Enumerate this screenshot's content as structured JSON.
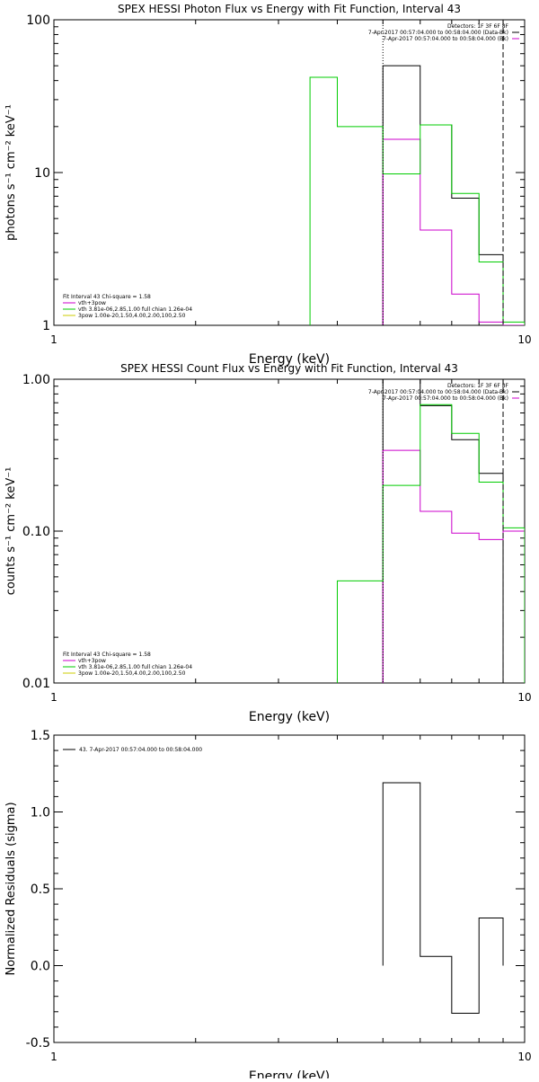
{
  "colors": {
    "observed": "#000000",
    "background": "#cc00cc",
    "model": "#00cc00",
    "pow": "#cccc00",
    "axis": "#000000"
  },
  "chart_data": [
    {
      "type": "step",
      "title": "SPEX HESSI Photon Flux vs Energy with Fit Function, Interval 43",
      "xlabel": "Energy (keV)",
      "ylabel": "photons s⁻¹ cm⁻² keV⁻¹",
      "xscale": "log",
      "yscale": "log",
      "xlim": [
        1,
        10
      ],
      "ylim": [
        1,
        100
      ],
      "xticks": [
        {
          "v": 1,
          "label": "1"
        },
        {
          "v": 10,
          "label": "10"
        }
      ],
      "yticks": [
        {
          "v": 1,
          "label": "1"
        },
        {
          "v": 10,
          "label": "10"
        },
        {
          "v": 100,
          "label": "100"
        }
      ],
      "vlines": [
        {
          "x": 5,
          "style": "dotted"
        },
        {
          "x": 9,
          "style": "dashed"
        }
      ],
      "legend_top": {
        "lines": [
          "Detectors: 1F 3F 6F 8F",
          "7-Apr-2017 00:57:04.000 to 00:58:04.000 (Data-Bk)",
          "7-Apr-2017 00:57:04.000 to 00:58:04.000 (Bk)"
        ],
        "colors": [
          "#000000",
          "#000000",
          "#cc00cc"
        ]
      },
      "legend_bottom": {
        "lines": [
          "Fit Interval 43   Chi-square = 1.58",
          "vth+3pow",
          "vth 3.81e-06,2.85,1.00  full chian 1.26e-04",
          "3pow 1.00e-20,1.50,4.00,2.00,100,2.50"
        ],
        "colors": [
          "#000000",
          "#cc00cc",
          "#00cc00",
          "#cccc00"
        ]
      },
      "series": [
        {
          "name": "Data-Bk",
          "color": "#000000",
          "edges": [
            5,
            6,
            7,
            8,
            9
          ],
          "values": [
            50,
            20.5,
            6.8,
            2.9
          ]
        },
        {
          "name": "Bk",
          "color": "#cc00cc",
          "edges": [
            5,
            6,
            7,
            8,
            9,
            10
          ],
          "values": [
            16.5,
            4.2,
            1.6,
            1.05,
            1.0
          ]
        },
        {
          "name": "vth",
          "color": "#00cc00",
          "edges": [
            3.5,
            4,
            5,
            6,
            7,
            8,
            9,
            10
          ],
          "values": [
            42,
            20,
            9.8,
            20.5,
            7.3,
            2.6,
            1.05
          ]
        }
      ]
    },
    {
      "type": "step",
      "title": "SPEX HESSI Count Flux vs Energy with Fit Function, Interval 43",
      "xlabel": "Energy (keV)",
      "ylabel": "counts s⁻¹ cm⁻² keV⁻¹",
      "xscale": "log",
      "yscale": "log",
      "xlim": [
        1,
        10
      ],
      "ylim": [
        0.01,
        1
      ],
      "xticks": [
        {
          "v": 1,
          "label": "1"
        },
        {
          "v": 10,
          "label": "10"
        }
      ],
      "yticks": [
        {
          "v": 0.01,
          "label": "0.01"
        },
        {
          "v": 0.1,
          "label": "0.10"
        },
        {
          "v": 1,
          "label": "1.00"
        }
      ],
      "vlines": [
        {
          "x": 5,
          "style": "dotted"
        },
        {
          "x": 9,
          "style": "dashed"
        }
      ],
      "legend_top": {
        "lines": [
          "Detectors: 1F 3F 6F 8F",
          "7-Apr-2017 00:57:04.000 to 00:58:04.000 (Data-Bk)",
          "7-Apr-2017 00:57:04.000 to 00:58:04.000 (Bk)"
        ],
        "colors": [
          "#000000",
          "#000000",
          "#cc00cc"
        ]
      },
      "legend_bottom": {
        "lines": [
          "Fit Interval 43   Chi-square = 1.58",
          "vth+3pow",
          "vth 3.81e-06,2.85,1.00  full chian 1.26e-04",
          "3pow 1.00e-20,1.50,4.00,2.00,100,2.50"
        ],
        "colors": [
          "#000000",
          "#cc00cc",
          "#00cc00",
          "#cccc00"
        ]
      },
      "series": [
        {
          "name": "Data-Bk",
          "color": "#000000",
          "edges": [
            5,
            6,
            7,
            8,
            9
          ],
          "values": [
            1.0,
            0.67,
            0.4,
            0.24
          ]
        },
        {
          "name": "Bk",
          "color": "#cc00cc",
          "edges": [
            5,
            6,
            7,
            8,
            9,
            10
          ],
          "values": [
            0.34,
            0.135,
            0.097,
            0.088,
            0.1
          ]
        },
        {
          "name": "vth",
          "color": "#00cc00",
          "edges": [
            4,
            5,
            6,
            7,
            8,
            9,
            10
          ],
          "values": [
            0.047,
            0.2,
            0.68,
            0.44,
            0.21,
            0.105
          ]
        }
      ]
    },
    {
      "type": "step",
      "title": "",
      "xlabel": "Energy (keV)",
      "ylabel": "Normalized Residuals (sigma)",
      "xscale": "log",
      "yscale": "linear",
      "xlim": [
        1,
        10
      ],
      "ylim": [
        -0.5,
        1.5
      ],
      "xticks": [
        {
          "v": 1,
          "label": "1"
        },
        {
          "v": 10,
          "label": "10"
        }
      ],
      "yticks": [
        {
          "v": -0.5,
          "label": "-0.5"
        },
        {
          "v": 0,
          "label": "0.0"
        },
        {
          "v": 0.5,
          "label": "0.5"
        },
        {
          "v": 1.0,
          "label": "1.0"
        },
        {
          "v": 1.5,
          "label": "1.5"
        }
      ],
      "vlines": [],
      "legend_top": {
        "lines": [
          "43.  7-Apr-2017 00:57:04.000 to 00:58:04.000"
        ],
        "colors": [
          "#000000"
        ]
      },
      "legend_bottom": {
        "lines": [],
        "colors": []
      },
      "series": [
        {
          "name": "Residuals",
          "color": "#000000",
          "edges": [
            5,
            6,
            7,
            8,
            9
          ],
          "values": [
            1.19,
            0.06,
            -0.31,
            0.31
          ]
        }
      ]
    }
  ]
}
